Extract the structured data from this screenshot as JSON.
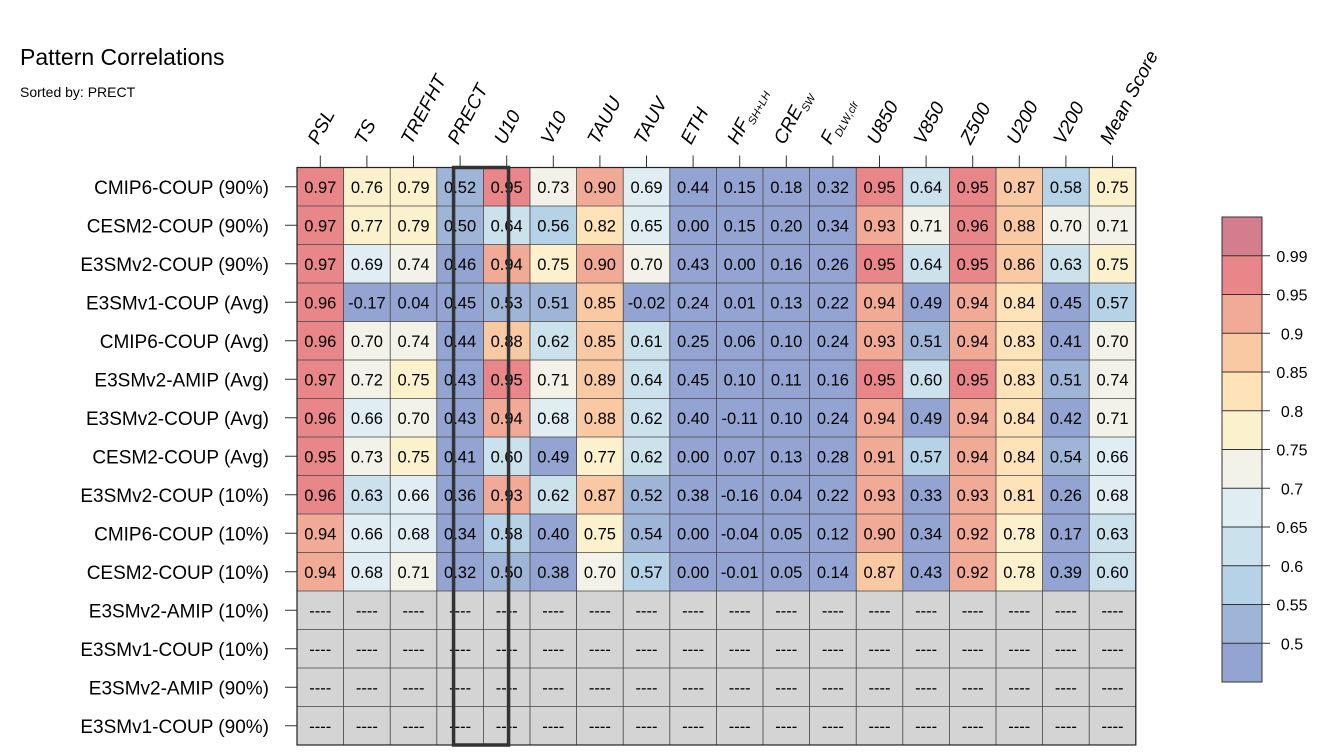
{
  "chart_data": {
    "type": "heatmap",
    "title": "Pattern Correlations",
    "subtitle": "Sorted by: PRECT",
    "columns": [
      {
        "label": "PSL"
      },
      {
        "label": "TS"
      },
      {
        "label": "TREFHT"
      },
      {
        "label": "PRECT"
      },
      {
        "label": "U10"
      },
      {
        "label": "V10"
      },
      {
        "label": "TAUU"
      },
      {
        "label": "TAUV"
      },
      {
        "label": "ETH"
      },
      {
        "label": "HF",
        "sub": "SH+LH"
      },
      {
        "label": "CRE",
        "sub": "SW"
      },
      {
        "label": "F",
        "sub": "DLW,clr"
      },
      {
        "label": "U850"
      },
      {
        "label": "V850"
      },
      {
        "label": "Z500"
      },
      {
        "label": "U200"
      },
      {
        "label": "V200"
      },
      {
        "label": "Mean Score"
      }
    ],
    "highlight_column": "PRECT",
    "missing_label": "----",
    "rows": [
      {
        "name": "CMIP6-COUP (90%)",
        "values": [
          0.97,
          0.76,
          0.79,
          0.52,
          0.95,
          0.73,
          0.9,
          0.69,
          0.44,
          0.15,
          0.18,
          0.32,
          0.95,
          0.64,
          0.95,
          0.87,
          0.58,
          0.75
        ]
      },
      {
        "name": "CESM2-COUP (90%)",
        "values": [
          0.97,
          0.77,
          0.79,
          0.5,
          0.64,
          0.56,
          0.82,
          0.65,
          0.0,
          0.15,
          0.2,
          0.34,
          0.93,
          0.71,
          0.96,
          0.88,
          0.7,
          0.71
        ]
      },
      {
        "name": "E3SMv2-COUP (90%)",
        "values": [
          0.97,
          0.69,
          0.74,
          0.46,
          0.94,
          0.75,
          0.9,
          0.7,
          0.43,
          0.0,
          0.16,
          0.26,
          0.95,
          0.64,
          0.95,
          0.86,
          0.63,
          0.75
        ]
      },
      {
        "name": "E3SMv1-COUP (Avg)",
        "values": [
          0.96,
          -0.17,
          0.04,
          0.45,
          0.53,
          0.51,
          0.85,
          -0.02,
          0.24,
          0.01,
          0.13,
          0.22,
          0.94,
          0.49,
          0.94,
          0.84,
          0.45,
          0.57
        ]
      },
      {
        "name": "CMIP6-COUP (Avg)",
        "values": [
          0.96,
          0.7,
          0.74,
          0.44,
          0.88,
          0.62,
          0.85,
          0.61,
          0.25,
          0.06,
          0.1,
          0.24,
          0.93,
          0.51,
          0.94,
          0.83,
          0.41,
          0.7
        ]
      },
      {
        "name": "E3SMv2-AMIP (Avg)",
        "values": [
          0.97,
          0.72,
          0.75,
          0.43,
          0.95,
          0.71,
          0.89,
          0.64,
          0.45,
          0.1,
          0.11,
          0.16,
          0.95,
          0.6,
          0.95,
          0.83,
          0.51,
          0.74
        ]
      },
      {
        "name": "E3SMv2-COUP (Avg)",
        "values": [
          0.96,
          0.66,
          0.7,
          0.43,
          0.94,
          0.68,
          0.88,
          0.62,
          0.4,
          -0.11,
          0.1,
          0.24,
          0.94,
          0.49,
          0.94,
          0.84,
          0.42,
          0.71
        ]
      },
      {
        "name": "CESM2-COUP (Avg)",
        "values": [
          0.95,
          0.73,
          0.75,
          0.41,
          0.6,
          0.49,
          0.77,
          0.62,
          0.0,
          0.07,
          0.13,
          0.28,
          0.91,
          0.57,
          0.94,
          0.84,
          0.54,
          0.66
        ]
      },
      {
        "name": "E3SMv2-COUP (10%)",
        "values": [
          0.96,
          0.63,
          0.66,
          0.36,
          0.93,
          0.62,
          0.87,
          0.52,
          0.38,
          -0.16,
          0.04,
          0.22,
          0.93,
          0.33,
          0.93,
          0.81,
          0.26,
          0.68
        ]
      },
      {
        "name": "CMIP6-COUP (10%)",
        "values": [
          0.94,
          0.66,
          0.68,
          0.34,
          0.58,
          0.4,
          0.75,
          0.54,
          0.0,
          -0.04,
          0.05,
          0.12,
          0.9,
          0.34,
          0.92,
          0.78,
          0.17,
          0.63
        ]
      },
      {
        "name": "CESM2-COUP (10%)",
        "values": [
          0.94,
          0.68,
          0.71,
          0.32,
          0.5,
          0.38,
          0.7,
          0.57,
          0.0,
          -0.01,
          0.05,
          0.14,
          0.87,
          0.43,
          0.92,
          0.78,
          0.39,
          0.6
        ]
      },
      {
        "name": "E3SMv2-AMIP (10%)",
        "values": [
          null,
          null,
          null,
          null,
          null,
          null,
          null,
          null,
          null,
          null,
          null,
          null,
          null,
          null,
          null,
          null,
          null,
          null
        ]
      },
      {
        "name": "E3SMv1-COUP (10%)",
        "values": [
          null,
          null,
          null,
          null,
          null,
          null,
          null,
          null,
          null,
          null,
          null,
          null,
          null,
          null,
          null,
          null,
          null,
          null
        ]
      },
      {
        "name": "E3SMv2-AMIP (90%)",
        "values": [
          null,
          null,
          null,
          null,
          null,
          null,
          null,
          null,
          null,
          null,
          null,
          null,
          null,
          null,
          null,
          null,
          null,
          null
        ]
      },
      {
        "name": "E3SMv1-COUP (90%)",
        "values": [
          null,
          null,
          null,
          null,
          null,
          null,
          null,
          null,
          null,
          null,
          null,
          null,
          null,
          null,
          null,
          null,
          null,
          null
        ]
      }
    ],
    "colorbar": {
      "levels": [
        "0.99",
        "0.95",
        "0.9",
        "0.85",
        "0.8",
        "0.75",
        "0.7",
        "0.65",
        "0.6",
        "0.55",
        "0.5"
      ],
      "colors": [
        "#d27e8e",
        "#e8868a",
        "#f1aa96",
        "#f8c9a3",
        "#fde3b7",
        "#fbf1cd",
        "#f2f2e8",
        "#e0eef4",
        "#cbe1ec",
        "#b5d2e6",
        "#9fb5d8",
        "#94a4d2"
      ],
      "missing_color": "#d4d4d4"
    }
  }
}
